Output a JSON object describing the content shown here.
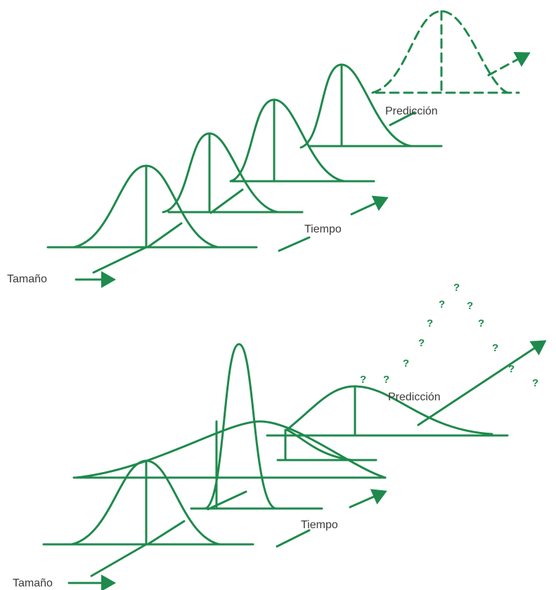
{
  "colors": {
    "curve": "#1e8a4c",
    "text": "#3a3a3a",
    "background": "#ffffff"
  },
  "top_diagram": {
    "size_label": "Tamaño",
    "time_label": "Tiempo",
    "prediction_label": "Predicción"
  },
  "bottom_diagram": {
    "size_label": "Tamaño",
    "time_label": "Tiempo",
    "prediction_label": "Predicción",
    "uncertainty_mark": "?"
  }
}
